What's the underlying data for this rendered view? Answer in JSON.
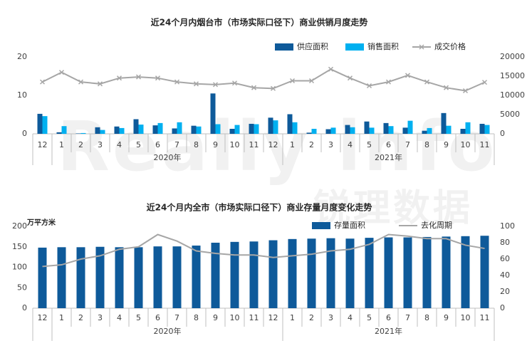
{
  "watermark": {
    "text_en": "Really info",
    "text_cn": "锐理数据"
  },
  "months": [
    "12",
    "1",
    "2",
    "3",
    "4",
    "5",
    "6",
    "7",
    "8",
    "9",
    "10",
    "11",
    "12",
    "1",
    "2",
    "3",
    "4",
    "5",
    "6",
    "7",
    "8",
    "9",
    "10",
    "11"
  ],
  "chart_data": [
    {
      "type": "bar",
      "title": "近24个月内烟台市（市场实际口径下）商业供销月度走势",
      "categories": [
        "12",
        "1",
        "2",
        "3",
        "4",
        "5",
        "6",
        "7",
        "8",
        "9",
        "10",
        "11",
        "12",
        "1",
        "2",
        "3",
        "4",
        "5",
        "6",
        "7",
        "8",
        "9",
        "10",
        "11"
      ],
      "years": [
        {
          "label": "2020年",
          "from": 1,
          "to": 12
        },
        {
          "label": "2021年",
          "from": 13,
          "to": 23
        }
      ],
      "ylim_left": [
        0,
        20
      ],
      "yticks_left": [
        0,
        10,
        20
      ],
      "ylim_right": [
        0,
        20000
      ],
      "yticks_right": [
        0,
        5000,
        10000,
        15000,
        20000
      ],
      "legend_position": "top-right",
      "series": [
        {
          "name": "供应面积",
          "type": "bar",
          "axis": "left",
          "color": "#0e5a9a",
          "values": [
            5.2,
            0.4,
            0.1,
            1.7,
            1.9,
            3.8,
            2.2,
            1.4,
            2.1,
            10.5,
            1.3,
            2.6,
            4.2,
            5.1,
            0.3,
            1.2,
            2.3,
            3.2,
            2.8,
            1.6,
            0.8,
            5.4,
            1.3,
            2.6
          ]
        },
        {
          "name": "销售面积",
          "type": "bar",
          "axis": "left",
          "color": "#00b0f0",
          "values": [
            4.6,
            2.0,
            0.2,
            1.0,
            1.5,
            2.4,
            2.8,
            3.0,
            1.9,
            2.5,
            2.3,
            2.5,
            3.5,
            3.0,
            1.3,
            1.6,
            1.7,
            1.6,
            2.0,
            3.4,
            1.5,
            2.1,
            3.0,
            2.3
          ]
        },
        {
          "name": "成交价格",
          "type": "line",
          "axis": "right",
          "color": "#a6a6a6",
          "values": [
            13500,
            16000,
            13500,
            13000,
            14500,
            14800,
            14500,
            13500,
            13000,
            12800,
            13200,
            12000,
            11800,
            13800,
            13800,
            16800,
            14500,
            12500,
            13500,
            15200,
            13500,
            12000,
            11200,
            13400
          ]
        }
      ]
    },
    {
      "type": "bar",
      "title": "近24个月内全市（市场实际口径下）商业存量月度变化走势",
      "unit_label": "万平方米",
      "categories": [
        "12",
        "1",
        "2",
        "3",
        "4",
        "5",
        "6",
        "7",
        "8",
        "9",
        "10",
        "11",
        "12",
        "1",
        "2",
        "3",
        "4",
        "5",
        "6",
        "7",
        "8",
        "9",
        "10",
        "11"
      ],
      "years": [
        {
          "label": "2020年",
          "from": 1,
          "to": 12
        },
        {
          "label": "2021年",
          "from": 13,
          "to": 23
        }
      ],
      "ylim_left": [
        0,
        200
      ],
      "yticks_left": [
        0,
        50,
        100,
        150,
        200
      ],
      "ylim_right": [
        0,
        100
      ],
      "yticks_right": [
        0,
        20,
        40,
        60,
        80,
        100
      ],
      "legend_position": "top-right",
      "series": [
        {
          "name": "存量面积",
          "type": "bar",
          "axis": "left",
          "color": "#0e5a9a",
          "values": [
            148,
            149,
            149,
            150,
            149,
            149,
            151,
            151,
            153,
            160,
            162,
            163,
            166,
            169,
            170,
            171,
            170,
            172,
            173,
            173,
            174,
            175,
            176,
            177
          ]
        },
        {
          "name": "去化周期",
          "type": "line",
          "axis": "right",
          "color": "#a6a6a6",
          "values": [
            51,
            53,
            60,
            64,
            72,
            75,
            90,
            82,
            70,
            67,
            65,
            65,
            62,
            64,
            66,
            70,
            72,
            78,
            90,
            88,
            85,
            85,
            77,
            73
          ]
        }
      ]
    }
  ]
}
